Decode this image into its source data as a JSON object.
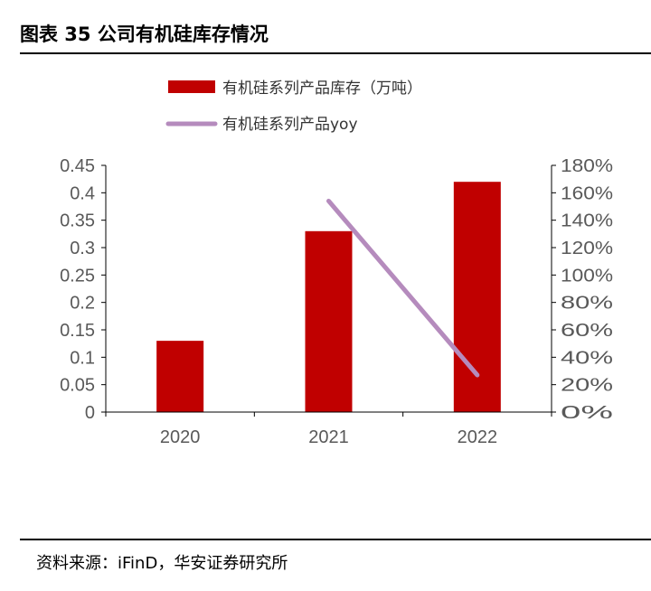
{
  "header": {
    "title": "图表 35 公司有机硅库存情况"
  },
  "footer": {
    "source": "资料来源：iFinD，华安证券研究所"
  },
  "chart_data": {
    "type": "bar",
    "categories": [
      "2020",
      "2021",
      "2022"
    ],
    "series": [
      {
        "name": "有机硅系列产品库存（万吨）",
        "type": "bar",
        "axis": "left",
        "values": [
          0.13,
          0.33,
          0.42
        ],
        "color": "#c00000"
      },
      {
        "name": "有机硅系列产品yoy",
        "type": "line",
        "axis": "right",
        "x": [
          "2021",
          "2022"
        ],
        "values": [
          154,
          27
        ],
        "unit": "%",
        "color": "#b58bbd"
      }
    ],
    "y_left": {
      "min": 0,
      "max": 0.45,
      "ticks": [
        "0",
        "0.05",
        "0.1",
        "0.15",
        "0.2",
        "0.25",
        "0.3",
        "0.35",
        "0.4",
        "0.45"
      ]
    },
    "y_right": {
      "min": 0,
      "max": 180,
      "ticks": [
        "0%",
        "20%",
        "40%",
        "60%",
        "80%",
        "100%",
        "120%",
        "140%",
        "160%",
        "180%"
      ]
    },
    "legend_position": "top",
    "grid": false
  }
}
